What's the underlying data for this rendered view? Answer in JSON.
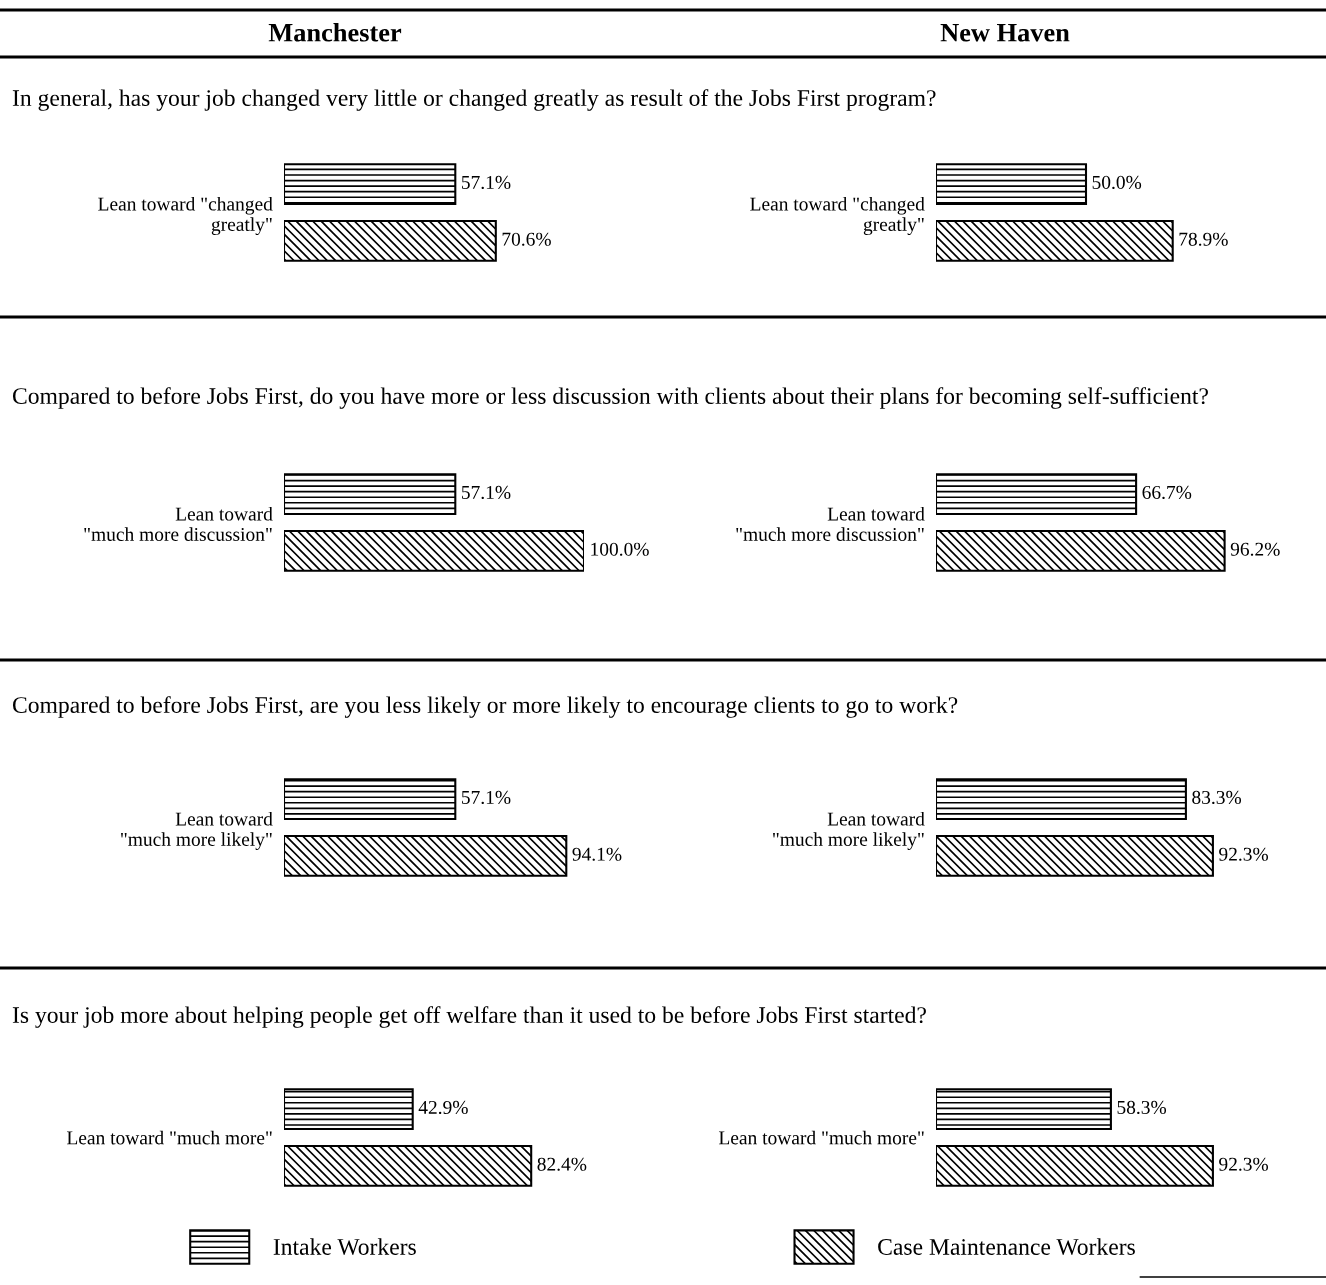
{
  "chart_data": [
    {
      "type": "bar",
      "orientation": "horizontal",
      "title": "Manchester",
      "subtitle": "In general, has your job changed very little or changed greatly as result of the Jobs First program?",
      "categories": [
        "Lean toward \"changed\ngreatly\""
      ],
      "tick_labels": "y",
      "series": [
        {
          "color": "#000000",
          "values": [
            57.1
          ],
          "value_labels": [
            "57.1%"
          ]
        },
        {
          "color": "#000000",
          "values": [
            70.6
          ],
          "value_labels": [
            "70.6%"
          ]
        }
      ]
    },
    {
      "type": "bar",
      "orientation": "horizontal",
      "title": "New Haven",
      "categories": [
        "Lean toward \"changed\ngreatly\""
      ],
      "tick_labels": "y",
      "series": [
        {
          "color": "#000000",
          "values": [
            50.0
          ],
          "value_labels": [
            "50.0%"
          ]
        },
        {
          "color": "#000000",
          "values": [
            78.9
          ],
          "value_labels": [
            "78.9%"
          ]
        }
      ]
    },
    {
      "type": "bar",
      "orientation": "horizontal",
      "subtitle": "Compared to before Jobs First, do you have more or less discussion with clients about their plans for becoming self-sufficient?",
      "categories": [
        "Lean toward\n\"much more discussion\""
      ],
      "tick_labels": "y",
      "series": [
        {
          "color": "#000000",
          "values": [
            57.1
          ],
          "value_labels": [
            "57.1%"
          ]
        },
        {
          "color": "#000000",
          "values": [
            100.0
          ],
          "value_labels": [
            "100.0%"
          ]
        }
      ]
    },
    {
      "type": "bar",
      "orientation": "horizontal",
      "categories": [
        "Lean toward\n\"much more discussion\""
      ],
      "tick_labels": "y",
      "series": [
        {
          "color": "#000000",
          "values": [
            66.7
          ],
          "value_labels": [
            "66.7%"
          ]
        },
        {
          "color": "#000000",
          "values": [
            96.2
          ],
          "value_labels": [
            "96.2%"
          ]
        }
      ]
    },
    {
      "type": "bar",
      "orientation": "horizontal",
      "subtitle": "Compared to before Jobs First, are you less likely or more likely to encourage clients to go to work?",
      "categories": [
        "Lean toward\n\"much more likely\""
      ],
      "tick_labels": "y",
      "series": [
        {
          "color": "#000000",
          "values": [
            57.1
          ],
          "value_labels": [
            "57.1%"
          ]
        },
        {
          "color": "#000000",
          "values": [
            94.1
          ],
          "value_labels": [
            "94.1%"
          ]
        }
      ]
    },
    {
      "type": "bar",
      "orientation": "horizontal",
      "categories": [
        "Lean toward\n\"much more likely\""
      ],
      "tick_labels": "y",
      "series": [
        {
          "color": "#000000",
          "values": [
            83.3
          ],
          "value_labels": [
            "83.3%"
          ]
        },
        {
          "color": "#000000",
          "values": [
            92.3
          ],
          "value_labels": [
            "92.3%"
          ]
        }
      ]
    },
    {
      "type": "bar",
      "orientation": "horizontal",
      "subtitle": "Is your job more about helping people get off welfare than it used to be before Jobs First started?",
      "categories": [
        "Lean toward \"much more\""
      ],
      "tick_labels": "y",
      "legend": "bottom",
      "series": [
        {
          "name": "Intake Workers",
          "color": "#000000",
          "values": [
            42.9
          ],
          "value_labels": [
            "42.9%"
          ]
        },
        {
          "name": "Case Maintenance Workers",
          "color": "#000000",
          "values": [
            82.4
          ],
          "value_labels": [
            "82.4%"
          ]
        }
      ]
    },
    {
      "type": "bar",
      "orientation": "horizontal",
      "categories": [
        "Lean toward \"much more\""
      ],
      "tick_labels": "y",
      "series": [
        {
          "color": "#000000",
          "values": [
            58.3
          ],
          "value_labels": [
            "58.3%"
          ]
        },
        {
          "color": "#000000",
          "values": [
            92.3
          ],
          "value_labels": [
            "92.3%"
          ]
        }
      ]
    }
  ]
}
